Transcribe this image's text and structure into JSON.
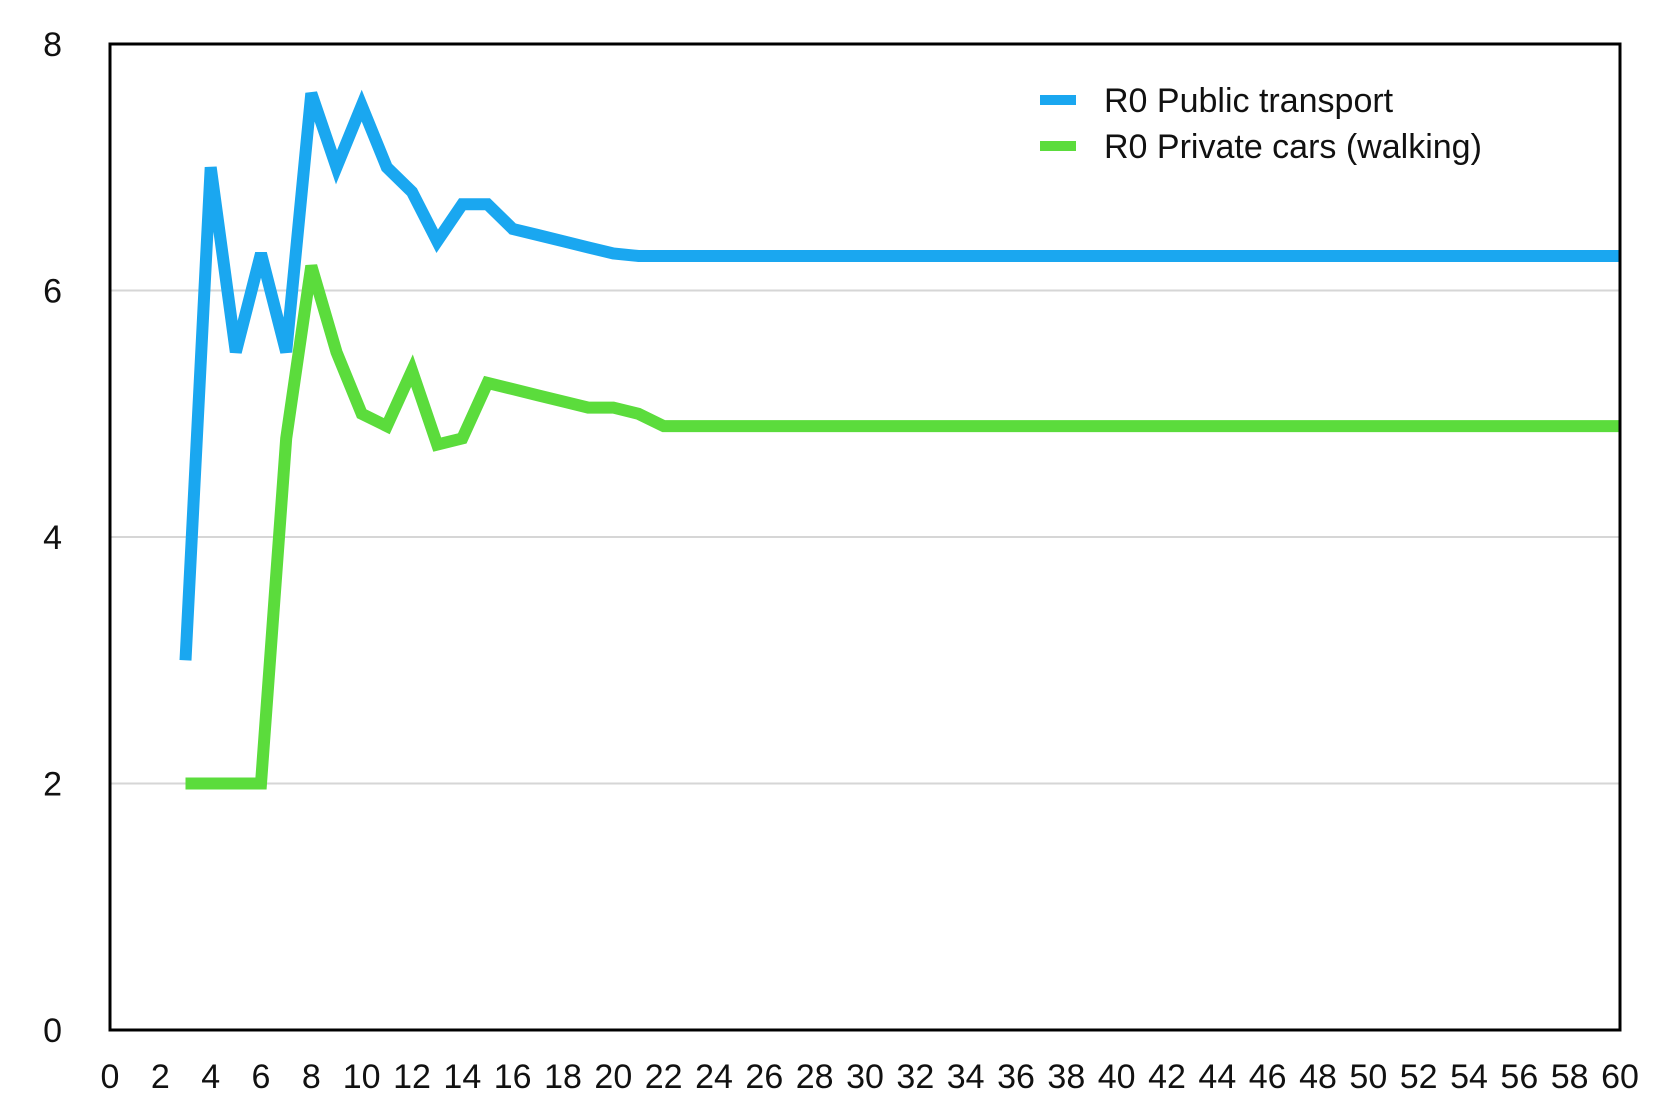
{
  "chart_data": {
    "type": "line",
    "title": "",
    "xlabel": "",
    "ylabel": "",
    "xlim": [
      0,
      60
    ],
    "ylim": [
      0,
      8
    ],
    "x_ticks": [
      "0",
      "2",
      "4",
      "6",
      "8",
      "10",
      "12",
      "14",
      "16",
      "18",
      "20",
      "22",
      "24",
      "26",
      "28",
      "30",
      "32",
      "34",
      "36",
      "38",
      "40",
      "42",
      "44",
      "46",
      "48",
      "50",
      "52",
      "54",
      "56",
      "58",
      "60"
    ],
    "y_ticks": [
      "0",
      "2",
      "4",
      "6",
      "8"
    ],
    "grid": "horizontal",
    "legend_position": "top-right",
    "series": [
      {
        "name": "R0 Public transport",
        "color": "#1aa7f0",
        "x": [
          3,
          4,
          5,
          6,
          7,
          8,
          9,
          10,
          11,
          12,
          13,
          14,
          15,
          16,
          17,
          18,
          19,
          20,
          21,
          22,
          24,
          26,
          28,
          30,
          32,
          34,
          36,
          38,
          40,
          42,
          44,
          46,
          48,
          50,
          52,
          54,
          56,
          58,
          60
        ],
        "y": [
          3.0,
          7.0,
          5.5,
          6.3,
          5.5,
          7.6,
          7.0,
          7.5,
          7.0,
          6.8,
          6.4,
          6.7,
          6.7,
          6.5,
          6.45,
          6.4,
          6.35,
          6.3,
          6.28,
          6.28,
          6.28,
          6.28,
          6.28,
          6.28,
          6.28,
          6.28,
          6.28,
          6.28,
          6.28,
          6.28,
          6.28,
          6.28,
          6.28,
          6.28,
          6.28,
          6.28,
          6.28,
          6.28,
          6.28
        ]
      },
      {
        "name": "R0 Private cars (walking)",
        "color": "#5bdc3c",
        "x": [
          3,
          4,
          5,
          6,
          7,
          8,
          9,
          10,
          11,
          12,
          13,
          14,
          15,
          16,
          17,
          18,
          19,
          20,
          21,
          22,
          24,
          26,
          28,
          30,
          32,
          34,
          36,
          38,
          40,
          42,
          44,
          46,
          48,
          50,
          52,
          54,
          56,
          58,
          60
        ],
        "y": [
          2.0,
          2.0,
          2.0,
          2.0,
          4.8,
          6.2,
          5.5,
          5.0,
          4.9,
          5.35,
          4.75,
          4.8,
          5.25,
          5.2,
          5.15,
          5.1,
          5.05,
          5.05,
          5.0,
          4.9,
          4.9,
          4.9,
          4.9,
          4.9,
          4.9,
          4.9,
          4.9,
          4.9,
          4.9,
          4.9,
          4.9,
          4.9,
          4.9,
          4.9,
          4.9,
          4.9,
          4.9,
          4.9,
          4.9
        ]
      }
    ]
  }
}
